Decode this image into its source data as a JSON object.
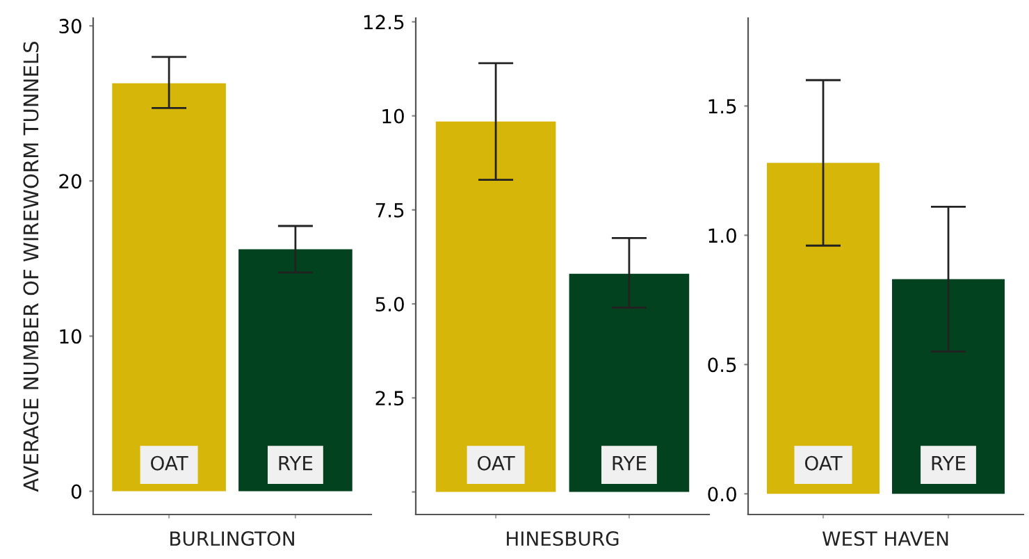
{
  "chart_data": [
    {
      "type": "bar",
      "categories": [
        "OAT",
        "RYE"
      ],
      "values": [
        26.3,
        15.6
      ],
      "colors": [
        "#d6b608",
        "#03421e"
      ],
      "errors": [
        [
          24.7,
          28.0
        ],
        [
          14.1,
          17.1
        ]
      ],
      "xlabel": "BURLINGTON",
      "ylabel": "AVERAGE NUMBER OF WIREWORM TUNNELS",
      "ylim": [
        -1.5,
        30.5
      ],
      "yticks": [
        0,
        10,
        20,
        30
      ],
      "grid": false
    },
    {
      "type": "bar",
      "categories": [
        "OAT",
        "RYE"
      ],
      "values": [
        9.85,
        5.8
      ],
      "colors": [
        "#d6b608",
        "#03421e"
      ],
      "errors": [
        [
          8.3,
          11.4
        ],
        [
          4.9,
          6.75
        ]
      ],
      "xlabel": "HINESBURG",
      "ylim": [
        -0.6,
        12.6
      ],
      "yticks": [
        {
          "value": 0,
          "label": null
        },
        {
          "value": 2.5,
          "label": "2.5"
        },
        {
          "value": 5,
          "label": "5.0"
        },
        {
          "value": 7.5,
          "label": "7.5"
        },
        {
          "value": 10,
          "label": "10"
        },
        {
          "value": 12.5,
          "label": "12.5"
        }
      ],
      "grid": false
    },
    {
      "type": "bar",
      "categories": [
        "OAT",
        "RYE"
      ],
      "values": [
        1.28,
        0.83
      ],
      "colors": [
        "#d6b608",
        "#03421e"
      ],
      "errors": [
        [
          0.96,
          1.6
        ],
        [
          0.55,
          1.11
        ]
      ],
      "xlabel": "WEST HAVEN",
      "ylim": [
        -0.08,
        1.84
      ],
      "yticks": [
        {
          "value": 0,
          "label": "0.0"
        },
        {
          "value": 0.5,
          "label": "0.5"
        },
        {
          "value": 1,
          "label": "1.0"
        },
        {
          "value": 1.5,
          "label": "1.5"
        }
      ],
      "grid": false
    }
  ]
}
